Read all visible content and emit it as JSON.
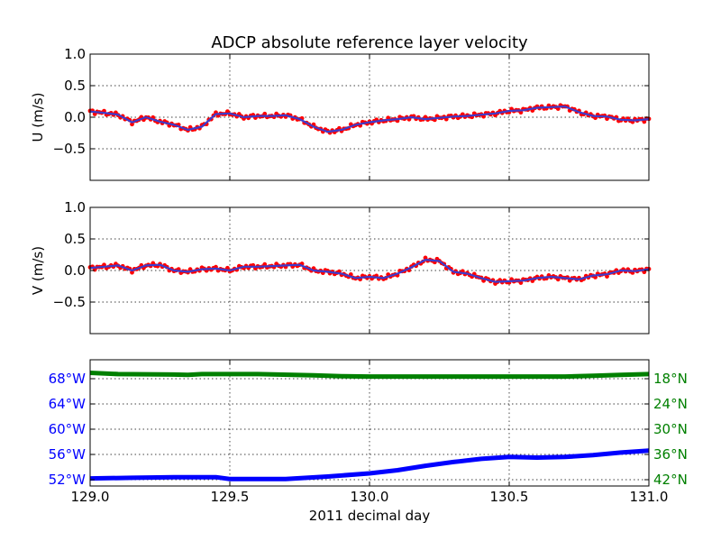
{
  "title": "ADCP absolute reference layer velocity",
  "xlabel": "2011 decimal day",
  "colors": {
    "dots": "#ff0000",
    "line": "#3c3ccc",
    "longitude": "#0000ff",
    "latitude": "#008000",
    "grid": "#000000"
  },
  "chart_data": [
    {
      "type": "line",
      "name": "u-panel",
      "ylabel": "U (m/s)",
      "xlim": [
        129.0,
        131.0
      ],
      "ylim": [
        -1.0,
        1.0
      ],
      "yticks": [
        -0.5,
        0.0,
        0.5,
        1.0
      ],
      "ytick_labels": [
        "−0.5",
        "0.0",
        "0.5",
        "1.0"
      ],
      "xticks": [
        129.0,
        129.5,
        130.0,
        130.5,
        131.0
      ],
      "grid": true,
      "series": [
        {
          "style": "red-dots-with-blue-line",
          "x": [
            129.0,
            129.05,
            129.1,
            129.15,
            129.2,
            129.25,
            129.3,
            129.35,
            129.4,
            129.45,
            129.5,
            129.55,
            129.6,
            129.65,
            129.7,
            129.75,
            129.8,
            129.85,
            129.9,
            129.95,
            130.0,
            130.05,
            130.1,
            130.15,
            130.2,
            130.25,
            130.3,
            130.35,
            130.4,
            130.45,
            130.5,
            130.55,
            130.6,
            130.65,
            130.7,
            130.75,
            130.8,
            130.85,
            130.9,
            130.95,
            131.0
          ],
          "values": [
            0.09,
            0.07,
            0.04,
            -0.08,
            0.0,
            -0.07,
            -0.12,
            -0.2,
            -0.15,
            0.05,
            0.06,
            0.0,
            0.02,
            0.02,
            0.03,
            -0.03,
            -0.15,
            -0.23,
            -0.2,
            -0.12,
            -0.08,
            -0.05,
            -0.03,
            0.0,
            -0.03,
            -0.01,
            0.01,
            0.02,
            0.04,
            0.06,
            0.1,
            0.11,
            0.15,
            0.16,
            0.17,
            0.08,
            0.02,
            0.01,
            -0.04,
            -0.05,
            -0.03
          ]
        }
      ]
    },
    {
      "type": "line",
      "name": "v-panel",
      "ylabel": "V (m/s)",
      "xlim": [
        129.0,
        131.0
      ],
      "ylim": [
        -1.0,
        1.0
      ],
      "yticks": [
        -0.5,
        0.0,
        0.5,
        1.0
      ],
      "ytick_labels": [
        "−0.5",
        "0.0",
        "0.5",
        "1.0"
      ],
      "xticks": [
        129.0,
        129.5,
        130.0,
        130.5,
        131.0
      ],
      "grid": true,
      "series": [
        {
          "style": "red-dots-with-blue-line",
          "x": [
            129.0,
            129.05,
            129.1,
            129.15,
            129.2,
            129.25,
            129.3,
            129.35,
            129.4,
            129.45,
            129.5,
            129.55,
            129.6,
            129.65,
            129.7,
            129.75,
            129.8,
            129.85,
            129.9,
            129.95,
            130.0,
            130.05,
            130.1,
            130.15,
            130.2,
            130.25,
            130.3,
            130.35,
            130.4,
            130.45,
            130.5,
            130.55,
            130.6,
            130.65,
            130.7,
            130.75,
            130.8,
            130.85,
            130.9,
            130.95,
            131.0
          ],
          "values": [
            0.04,
            0.06,
            0.08,
            0.0,
            0.08,
            0.09,
            0.0,
            -0.02,
            0.02,
            0.03,
            0.0,
            0.06,
            0.06,
            0.07,
            0.08,
            0.09,
            0.0,
            -0.02,
            -0.05,
            -0.12,
            -0.1,
            -0.12,
            -0.05,
            0.05,
            0.17,
            0.15,
            -0.02,
            -0.05,
            -0.12,
            -0.18,
            -0.17,
            -0.16,
            -0.12,
            -0.1,
            -0.12,
            -0.14,
            -0.08,
            -0.06,
            0.0,
            -0.01,
            0.02
          ]
        }
      ]
    },
    {
      "type": "line",
      "name": "position-panel",
      "xlim": [
        129.0,
        131.0
      ],
      "xticks": [
        129.0,
        129.5,
        130.0,
        130.5,
        131.0
      ],
      "xtick_labels": [
        "129.0",
        "129.5",
        "130.0",
        "130.5",
        "131.0"
      ],
      "left_axis": {
        "ylim": [
          -51.0,
          -71.0
        ],
        "ticks": [
          -52,
          -56,
          -60,
          -64,
          -68
        ],
        "tick_labels": [
          "52°W",
          "56°W",
          "60°W",
          "64°W",
          "68°W"
        ]
      },
      "right_axis": {
        "ylim": [
          43.5,
          13.5
        ],
        "ticks": [
          42,
          36,
          30,
          24,
          18
        ],
        "tick_labels": [
          "42°N",
          "36°N",
          "30°N",
          "24°N",
          "18°N"
        ]
      },
      "grid": true,
      "series": [
        {
          "style": "longitude",
          "axis": "left",
          "x": [
            129.0,
            129.15,
            129.3,
            129.45,
            129.5,
            129.7,
            129.85,
            130.0,
            130.1,
            130.2,
            130.3,
            130.4,
            130.5,
            130.6,
            130.7,
            130.8,
            130.9,
            131.0
          ],
          "values": [
            -52.2,
            -52.3,
            -52.4,
            -52.4,
            -52.1,
            -52.1,
            -52.5,
            -53.0,
            -53.5,
            -54.2,
            -54.8,
            -55.3,
            -55.6,
            -55.5,
            -55.6,
            -55.9,
            -56.3,
            -56.6
          ]
        },
        {
          "style": "latitude",
          "axis": "right",
          "x": [
            129.0,
            129.1,
            129.3,
            129.35,
            129.4,
            129.6,
            129.8,
            129.9,
            130.0,
            130.2,
            130.4,
            130.6,
            130.7,
            130.8,
            130.9,
            131.0
          ],
          "values": [
            16.6,
            16.9,
            17.0,
            17.1,
            16.9,
            16.9,
            17.2,
            17.4,
            17.5,
            17.5,
            17.5,
            17.5,
            17.5,
            17.3,
            17.1,
            16.9
          ]
        }
      ]
    }
  ]
}
